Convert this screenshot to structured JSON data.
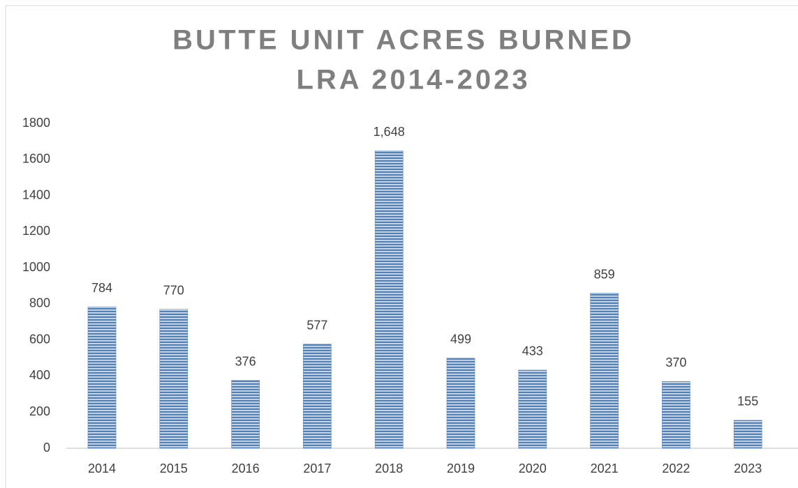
{
  "chart_data": {
    "type": "bar",
    "title": [
      "BUTTE UNIT ACRES BURNED",
      "LRA 2014-2023"
    ],
    "categories": [
      "2014",
      "2015",
      "2016",
      "2017",
      "2018",
      "2019",
      "2020",
      "2021",
      "2022",
      "2023"
    ],
    "values": [
      784,
      770,
      376,
      577,
      1648,
      499,
      433,
      859,
      370,
      155
    ],
    "value_labels": [
      "784",
      "770",
      "376",
      "577",
      "1,648",
      "499",
      "433",
      "859",
      "370",
      "155"
    ],
    "color": "#4f81bd",
    "ylim": [
      0,
      1800
    ],
    "yticks": [
      0,
      200,
      400,
      600,
      800,
      1000,
      1200,
      1400,
      1600,
      1800
    ],
    "grid": false
  }
}
